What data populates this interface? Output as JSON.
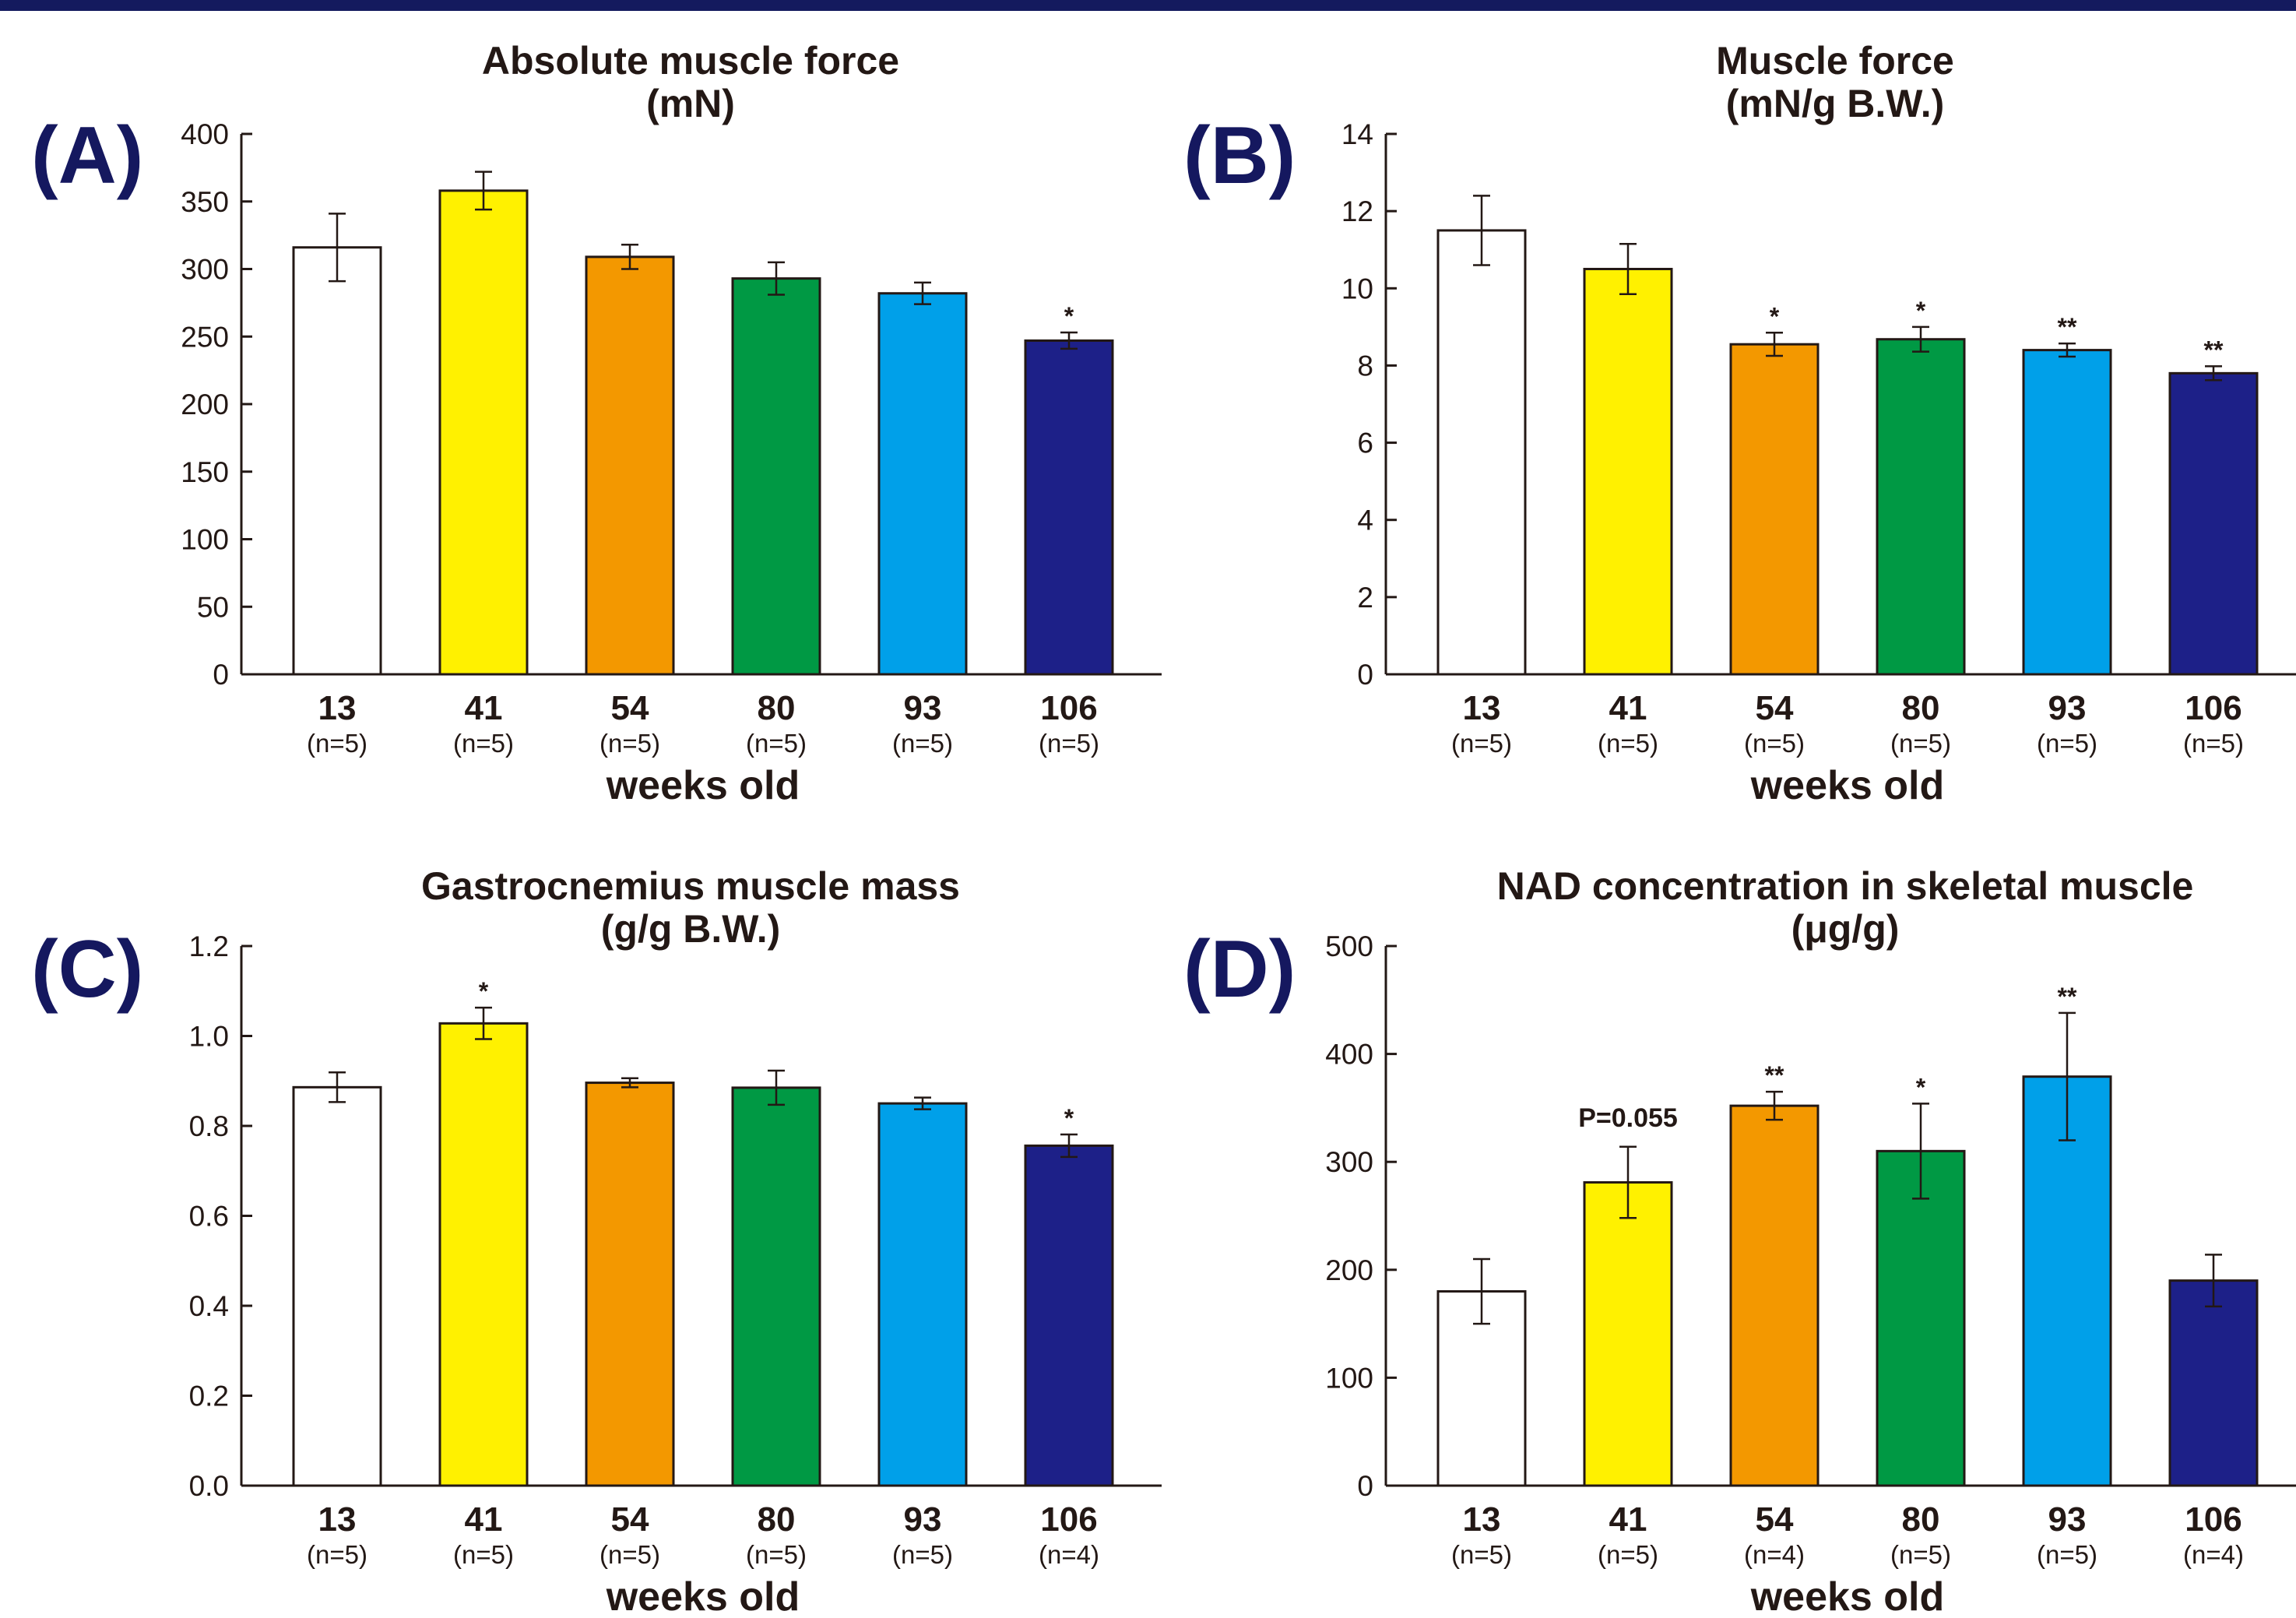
{
  "colors": {
    "bars": [
      "#ffffff",
      "#fff100",
      "#f39800",
      "#009944",
      "#00a0e9",
      "#1d2088"
    ],
    "outline": "#231815",
    "top_bar": "#141a5e",
    "panel_letter": "#15185f"
  },
  "chart_data": [
    {
      "type": "bar",
      "panel": "(A)",
      "title_lines": [
        "Absolute muscle force",
        "(mN)"
      ],
      "categories": [
        "13",
        "41",
        "54",
        "80",
        "93",
        "106"
      ],
      "n_labels": [
        "(n=5)",
        "(n=5)",
        "(n=5)",
        "(n=5)",
        "(n=5)",
        "(n=5)"
      ],
      "values": [
        316,
        358,
        309,
        293,
        282,
        247
      ],
      "errors": [
        25,
        14,
        9,
        12,
        8,
        6
      ],
      "annotations": [
        "",
        "",
        "",
        "",
        "",
        "*"
      ],
      "xlabel": "weeks old",
      "ylim": [
        0,
        400
      ],
      "yticks": [
        0,
        50,
        100,
        150,
        200,
        250,
        300,
        350,
        400
      ],
      "ytick_labels": [
        "0",
        "50",
        "100",
        "150",
        "200",
        "250",
        "300",
        "350",
        "400"
      ]
    },
    {
      "type": "bar",
      "panel": "(B)",
      "title_lines": [
        "Muscle force",
        "(mN/g B.W.)"
      ],
      "categories": [
        "13",
        "41",
        "54",
        "80",
        "93",
        "106"
      ],
      "n_labels": [
        "(n=5)",
        "(n=5)",
        "(n=5)",
        "(n=5)",
        "(n=5)",
        "(n=5)"
      ],
      "values": [
        11.5,
        10.5,
        8.55,
        8.68,
        8.4,
        7.8
      ],
      "errors": [
        0.9,
        0.65,
        0.3,
        0.32,
        0.17,
        0.18
      ],
      "annotations": [
        "",
        "",
        "*",
        "*",
        "**",
        "**"
      ],
      "xlabel": "weeks old",
      "ylim": [
        0,
        14
      ],
      "yticks": [
        0,
        2,
        4,
        6,
        8,
        10,
        12,
        14
      ],
      "ytick_labels": [
        "0",
        "2",
        "4",
        "6",
        "8",
        "10",
        "12",
        "14"
      ]
    },
    {
      "type": "bar",
      "panel": "(C)",
      "title_lines": [
        "Gastrocnemius muscle mass",
        "(g/g B.W.)"
      ],
      "categories": [
        "13",
        "41",
        "54",
        "80",
        "93",
        "106"
      ],
      "n_labels": [
        "(n=5)",
        "(n=5)",
        "(n=5)",
        "(n=5)",
        "(n=5)",
        "(n=4)"
      ],
      "values": [
        0.886,
        1.028,
        0.896,
        0.885,
        0.85,
        0.756
      ],
      "errors": [
        0.033,
        0.035,
        0.01,
        0.038,
        0.013,
        0.025
      ],
      "annotations": [
        "",
        "*",
        "",
        "",
        "",
        "*"
      ],
      "xlabel": "weeks old",
      "ylim": [
        0,
        1.2
      ],
      "yticks": [
        0,
        0.2,
        0.4,
        0.6,
        0.8,
        1.0,
        1.2
      ],
      "ytick_labels": [
        "0.0",
        "0.2",
        "0.4",
        "0.6",
        "0.8",
        "1.0",
        "1.2"
      ]
    },
    {
      "type": "bar",
      "panel": "(D)",
      "title_lines": [
        "NAD concentration in skeletal muscle",
        "(μg/g)"
      ],
      "categories": [
        "13",
        "41",
        "54",
        "80",
        "93",
        "106"
      ],
      "n_labels": [
        "(n=5)",
        "(n=5)",
        "(n=4)",
        "(n=5)",
        "(n=5)",
        "(n=4)"
      ],
      "values": [
        180,
        281,
        352,
        310,
        379,
        190
      ],
      "errors": [
        30,
        33,
        13,
        44,
        59,
        24
      ],
      "annotations": [
        "",
        "P=0.055",
        "**",
        "*",
        "**",
        ""
      ],
      "xlabel": "weeks old",
      "ylim": [
        0,
        500
      ],
      "yticks": [
        0,
        100,
        200,
        300,
        400,
        500
      ],
      "ytick_labels": [
        "0",
        "100",
        "200",
        "300",
        "400",
        "500"
      ]
    }
  ]
}
